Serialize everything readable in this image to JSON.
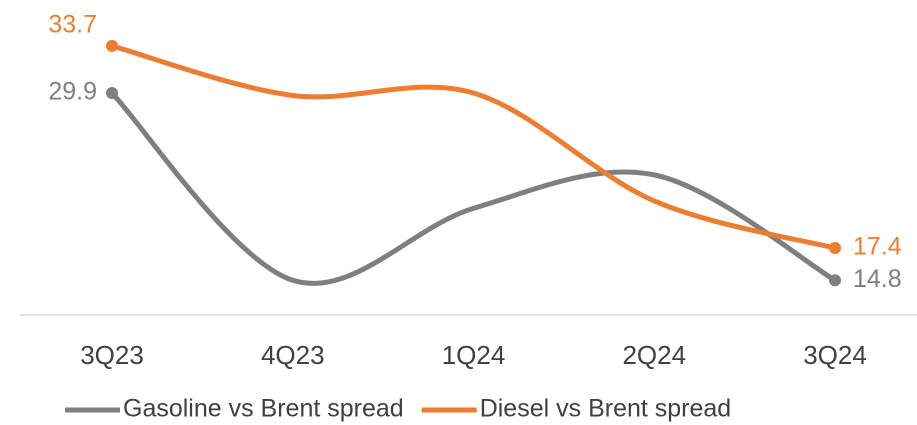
{
  "chart_data": {
    "type": "line",
    "categories": [
      "3Q23",
      "4Q23",
      "1Q24",
      "2Q24",
      "3Q24"
    ],
    "series": [
      {
        "name": "Gasoline vs Brent spread",
        "color": "#7f7f7f",
        "values": [
          29.9,
          14.8,
          20.6,
          23.3,
          14.8
        ],
        "value_labels": [
          "29.9",
          null,
          null,
          null,
          "14.8"
        ]
      },
      {
        "name": "Diesel vs Brent spread",
        "color": "#ed7d31",
        "values": [
          33.7,
          29.7,
          29.9,
          21.2,
          17.4
        ],
        "value_labels": [
          "33.7",
          null,
          null,
          null,
          "17.4"
        ]
      }
    ],
    "ylim": [
      12,
      37.4
    ],
    "smooth": true,
    "legend": "bottom"
  }
}
